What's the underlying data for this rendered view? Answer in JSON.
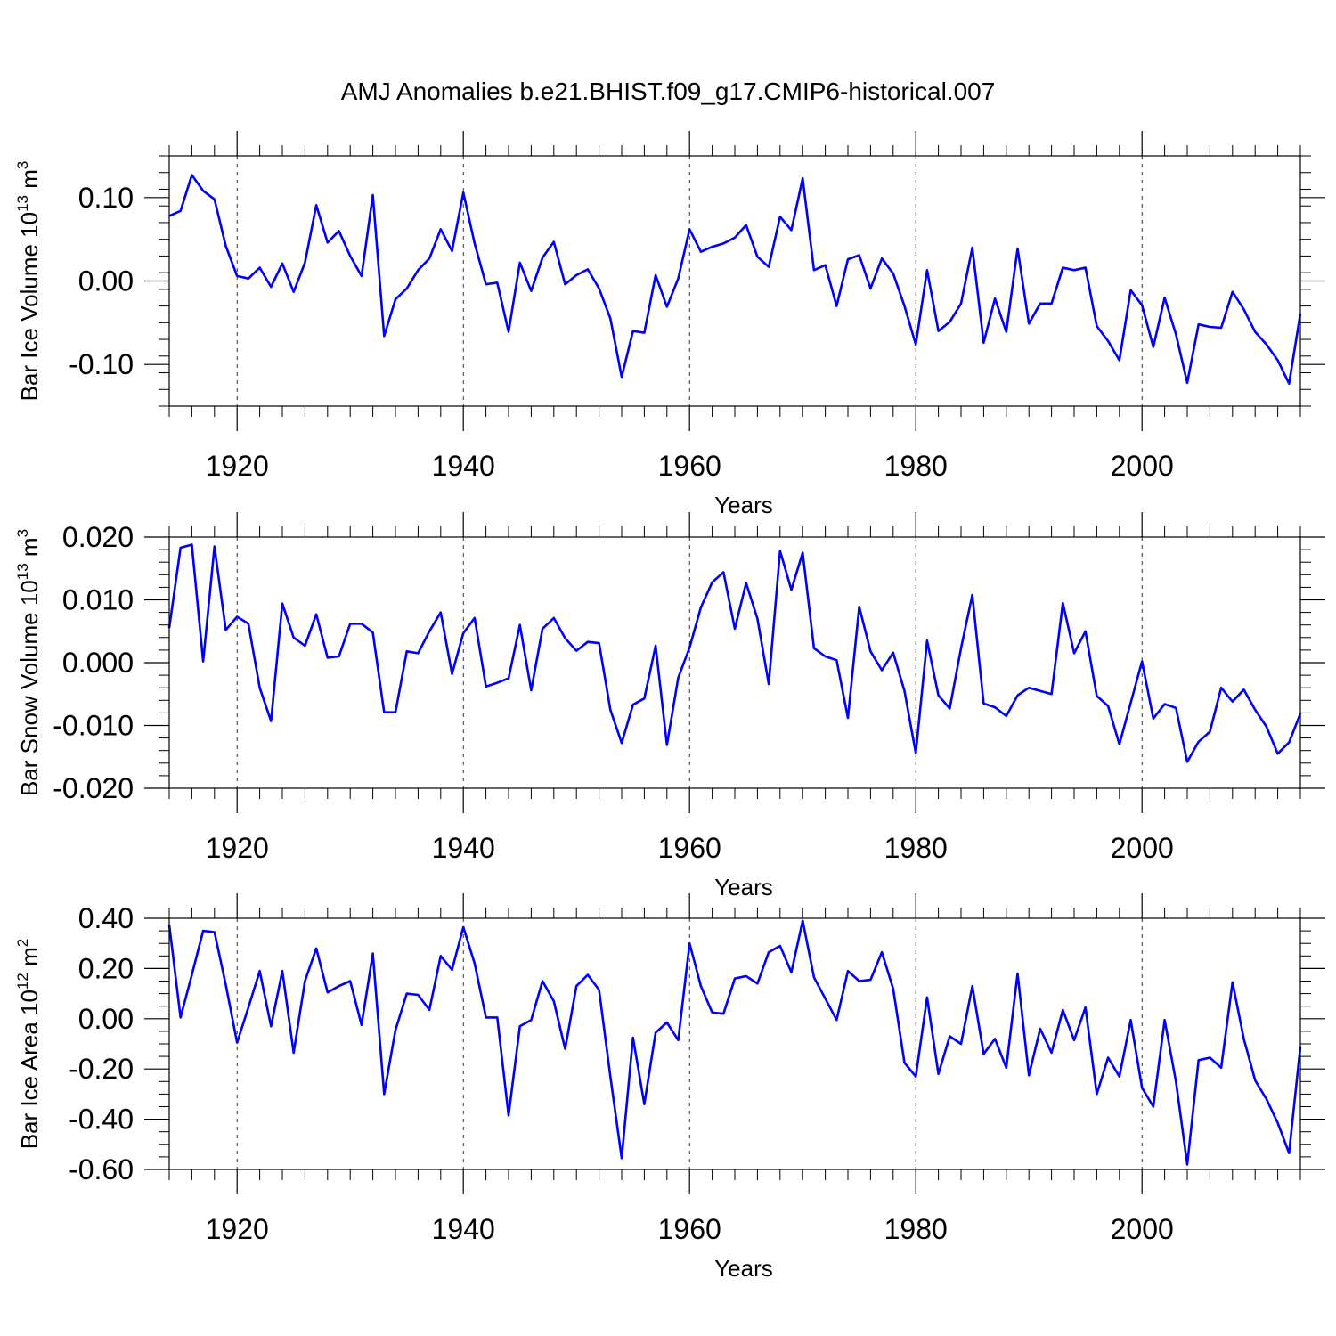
{
  "figure": {
    "title": "AMJ Anomalies b.e21.BHIST.f09_g17.CMIP6-historical.007",
    "line_color": "#0000ff",
    "axis_color": "#000000",
    "grid_color": "#000000"
  },
  "chart_data": [
    {
      "type": "line",
      "title": "AMJ Anomalies b.e21.BHIST.f09_g17.CMIP6-historical.007",
      "xlabel": "Years",
      "ylabel_text": "Bar Ice Volume 10",
      "ylabel_exp": "13",
      "ylabel_unit": " m",
      "ylabel_unit_exp": "3",
      "xlim": [
        1914,
        2014
      ],
      "ylim": [
        -0.15,
        0.15
      ],
      "xticks": [
        "1920",
        "1940",
        "1960",
        "1980",
        "2000"
      ],
      "xtick_values": [
        1920,
        1940,
        1960,
        1980,
        2000
      ],
      "yticks": [
        "0.10",
        "0.00",
        "-0.10"
      ],
      "ytick_values": [
        0.1,
        0.0,
        -0.1
      ],
      "yminor_step": 0.02,
      "grid": "vertical dashed at major x ticks",
      "series": [
        {
          "name": "Bar Ice Volume",
          "x": [
            1914,
            1915,
            1916,
            1917,
            1918,
            1919,
            1920,
            1921,
            1922,
            1923,
            1924,
            1925,
            1926,
            1927,
            1928,
            1929,
            1930,
            1931,
            1932,
            1933,
            1934,
            1935,
            1936,
            1937,
            1938,
            1939,
            1940,
            1941,
            1942,
            1943,
            1944,
            1945,
            1946,
            1947,
            1948,
            1949,
            1950,
            1951,
            1952,
            1953,
            1954,
            1955,
            1956,
            1957,
            1958,
            1959,
            1960,
            1961,
            1962,
            1963,
            1964,
            1965,
            1966,
            1967,
            1968,
            1969,
            1970,
            1971,
            1972,
            1973,
            1974,
            1975,
            1976,
            1977,
            1978,
            1979,
            1980,
            1981,
            1982,
            1983,
            1984,
            1985,
            1986,
            1987,
            1988,
            1989,
            1990,
            1991,
            1992,
            1993,
            1994,
            1995,
            1996,
            1997,
            1998,
            1999,
            2000,
            2001,
            2002,
            2003,
            2004,
            2005,
            2006,
            2007,
            2008,
            2009,
            2010,
            2011,
            2012,
            2013,
            2014
          ],
          "y": [
            0.078,
            0.084,
            0.127,
            0.108,
            0.098,
            0.042,
            0.006,
            0.003,
            0.016,
            -0.007,
            0.021,
            -0.013,
            0.022,
            0.091,
            0.046,
            0.06,
            0.03,
            0.006,
            0.103,
            -0.066,
            -0.022,
            -0.009,
            0.013,
            0.027,
            0.062,
            0.036,
            0.106,
            0.045,
            -0.004,
            -0.002,
            -0.061,
            0.022,
            -0.012,
            0.028,
            0.047,
            -0.004,
            0.007,
            0.014,
            -0.009,
            -0.045,
            -0.115,
            -0.06,
            -0.062,
            0.007,
            -0.031,
            0.003,
            0.062,
            0.035,
            0.041,
            0.045,
            0.052,
            0.067,
            0.029,
            0.017,
            0.077,
            0.061,
            0.123,
            0.013,
            0.019,
            -0.03,
            0.026,
            0.031,
            -0.009,
            0.027,
            0.009,
            -0.03,
            -0.076,
            0.013,
            -0.06,
            -0.049,
            -0.027,
            0.04,
            -0.074,
            -0.021,
            -0.061,
            0.039,
            -0.051,
            -0.027,
            -0.027,
            0.016,
            0.013,
            0.016,
            -0.054,
            -0.072,
            -0.095,
            -0.011,
            -0.029,
            -0.079,
            -0.02,
            -0.064,
            -0.122,
            -0.052,
            -0.055,
            -0.056,
            -0.013,
            -0.034,
            -0.061,
            -0.076,
            -0.095,
            -0.123,
            -0.039
          ]
        }
      ]
    },
    {
      "type": "line",
      "xlabel": "Years",
      "ylabel_text": "Bar Snow Volume 10",
      "ylabel_exp": "13",
      "ylabel_unit": " m",
      "ylabel_unit_exp": "3",
      "xlim": [
        1914,
        2014
      ],
      "ylim": [
        -0.02,
        0.02
      ],
      "xticks": [
        "1920",
        "1940",
        "1960",
        "1980",
        "2000"
      ],
      "xtick_values": [
        1920,
        1940,
        1960,
        1980,
        2000
      ],
      "yticks": [
        "0.020",
        "0.010",
        "0.000",
        "-0.010",
        "-0.020"
      ],
      "ytick_values": [
        0.02,
        0.01,
        0.0,
        -0.01,
        -0.02
      ],
      "yminor_step": 0.002,
      "grid": "vertical dashed at major x ticks",
      "series": [
        {
          "name": "Bar Snow Volume",
          "x": [
            1914,
            1915,
            1916,
            1917,
            1918,
            1919,
            1920,
            1921,
            1922,
            1923,
            1924,
            1925,
            1926,
            1927,
            1928,
            1929,
            1930,
            1931,
            1932,
            1933,
            1934,
            1935,
            1936,
            1937,
            1938,
            1939,
            1940,
            1941,
            1942,
            1943,
            1944,
            1945,
            1946,
            1947,
            1948,
            1949,
            1950,
            1951,
            1952,
            1953,
            1954,
            1955,
            1956,
            1957,
            1958,
            1959,
            1960,
            1961,
            1962,
            1963,
            1964,
            1965,
            1966,
            1967,
            1968,
            1969,
            1970,
            1971,
            1972,
            1973,
            1974,
            1975,
            1976,
            1977,
            1978,
            1979,
            1980,
            1981,
            1982,
            1983,
            1984,
            1985,
            1986,
            1987,
            1988,
            1989,
            1990,
            1991,
            1992,
            1993,
            1994,
            1995,
            1996,
            1997,
            1998,
            1999,
            2000,
            2001,
            2002,
            2003,
            2004,
            2005,
            2006,
            2007,
            2008,
            2009,
            2010,
            2011,
            2012,
            2013,
            2014
          ],
          "y": [
            0.0055,
            0.0183,
            0.0188,
            0.0002,
            0.0185,
            0.0052,
            0.0073,
            0.0062,
            -0.004,
            -0.0093,
            0.0094,
            0.004,
            0.0027,
            0.0077,
            0.0008,
            0.001,
            0.0062,
            0.0062,
            0.0048,
            -0.0079,
            -0.0079,
            0.0018,
            0.0015,
            0.005,
            0.008,
            -0.0018,
            0.0047,
            0.0071,
            -0.0038,
            -0.0032,
            -0.0025,
            0.006,
            -0.0044,
            0.0054,
            0.0071,
            0.0039,
            0.0019,
            0.0033,
            0.0031,
            -0.0075,
            -0.0128,
            -0.0067,
            -0.0057,
            0.0027,
            -0.0131,
            -0.0024,
            0.0024,
            0.0088,
            0.0128,
            0.0144,
            0.0054,
            0.0127,
            0.007,
            -0.0034,
            0.0178,
            0.0116,
            0.0175,
            0.0023,
            0.001,
            0.0004,
            -0.0088,
            0.0089,
            0.0018,
            -0.0012,
            0.0016,
            -0.0045,
            -0.0144,
            0.0035,
            -0.0052,
            -0.0073,
            0.0023,
            0.0108,
            -0.0065,
            -0.0071,
            -0.0085,
            -0.0052,
            -0.004,
            -0.0045,
            -0.005,
            0.0095,
            0.0015,
            0.005,
            -0.0053,
            -0.0069,
            -0.013,
            -0.0064,
            0.0002,
            -0.0089,
            -0.0066,
            -0.0072,
            -0.0158,
            -0.0126,
            -0.011,
            -0.004,
            -0.0062,
            -0.0043,
            -0.0075,
            -0.0102,
            -0.0145,
            -0.0127,
            -0.0081
          ]
        }
      ]
    },
    {
      "type": "line",
      "xlabel": "Years",
      "ylabel_text": "Bar Ice Area 10",
      "ylabel_exp": "12",
      "ylabel_unit": " m",
      "ylabel_unit_exp": "2",
      "xlim": [
        1914,
        2014
      ],
      "ylim": [
        -0.6,
        0.4
      ],
      "xticks": [
        "1920",
        "1940",
        "1960",
        "1980",
        "2000"
      ],
      "xtick_values": [
        1920,
        1940,
        1960,
        1980,
        2000
      ],
      "yticks": [
        "0.40",
        "0.20",
        "0.00",
        "-0.20",
        "-0.40",
        "-0.60"
      ],
      "ytick_values": [
        0.4,
        0.2,
        0.0,
        -0.2,
        -0.4,
        -0.6
      ],
      "yminor_step": 0.05,
      "grid": "vertical dashed at major x ticks",
      "series": [
        {
          "name": "Bar Ice Area",
          "x": [
            1914,
            1915,
            1916,
            1917,
            1918,
            1919,
            1920,
            1921,
            1922,
            1923,
            1924,
            1925,
            1926,
            1927,
            1928,
            1929,
            1930,
            1931,
            1932,
            1933,
            1934,
            1935,
            1936,
            1937,
            1938,
            1939,
            1940,
            1941,
            1942,
            1943,
            1944,
            1945,
            1946,
            1947,
            1948,
            1949,
            1950,
            1951,
            1952,
            1953,
            1954,
            1955,
            1956,
            1957,
            1958,
            1959,
            1960,
            1961,
            1962,
            1963,
            1964,
            1965,
            1966,
            1967,
            1968,
            1969,
            1970,
            1971,
            1972,
            1973,
            1974,
            1975,
            1976,
            1977,
            1978,
            1979,
            1980,
            1981,
            1982,
            1983,
            1984,
            1985,
            1986,
            1987,
            1988,
            1989,
            1990,
            1991,
            1992,
            1993,
            1994,
            1995,
            1996,
            1997,
            1998,
            1999,
            2000,
            2001,
            2002,
            2003,
            2004,
            2005,
            2006,
            2007,
            2008,
            2009,
            2010,
            2011,
            2012,
            2013,
            2014
          ],
          "y": [
            0.375,
            0.005,
            0.175,
            0.35,
            0.345,
            0.135,
            -0.095,
            0.045,
            0.19,
            -0.03,
            0.19,
            -0.135,
            0.15,
            0.28,
            0.105,
            0.13,
            0.15,
            -0.025,
            0.26,
            -0.3,
            -0.045,
            0.1,
            0.095,
            0.035,
            0.25,
            0.195,
            0.365,
            0.22,
            0.005,
            0.005,
            -0.385,
            -0.03,
            -0.005,
            0.15,
            0.07,
            -0.12,
            0.13,
            0.175,
            0.115,
            -0.23,
            -0.555,
            -0.075,
            -0.34,
            -0.055,
            -0.015,
            -0.085,
            0.3,
            0.13,
            0.025,
            0.02,
            0.16,
            0.17,
            0.14,
            0.265,
            0.29,
            0.185,
            0.39,
            0.165,
            0.08,
            -0.005,
            0.19,
            0.15,
            0.155,
            0.265,
            0.12,
            -0.175,
            -0.23,
            0.085,
            -0.22,
            -0.07,
            -0.1,
            0.13,
            -0.14,
            -0.08,
            -0.195,
            0.18,
            -0.225,
            -0.04,
            -0.135,
            0.035,
            -0.085,
            0.045,
            -0.3,
            -0.155,
            -0.23,
            -0.005,
            -0.275,
            -0.35,
            -0.005,
            -0.25,
            -0.58,
            -0.165,
            -0.155,
            -0.195,
            0.145,
            -0.08,
            -0.245,
            -0.32,
            -0.415,
            -0.535,
            -0.11
          ]
        }
      ]
    }
  ]
}
